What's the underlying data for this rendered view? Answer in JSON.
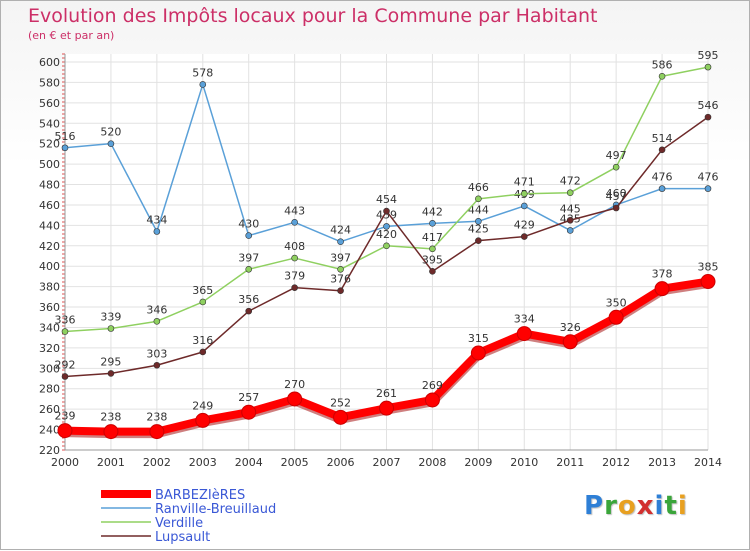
{
  "title": "Evolution des Impôts locaux pour la Commune par Habitant",
  "subtitle": "(en € et par an)",
  "logo": {
    "text": "Proxiti",
    "colors": [
      "#2e7fd6",
      "#3aa53a",
      "#e8a020",
      "#d22f2f",
      "#2e7fd6",
      "#3aa53a",
      "#e8a020"
    ]
  },
  "chart_data": {
    "type": "line",
    "x": [
      "2000",
      "2001",
      "2002",
      "2003",
      "2004",
      "2005",
      "2006",
      "2007",
      "2008",
      "2009",
      "2010",
      "2011",
      "2012",
      "2013",
      "2014"
    ],
    "ylim": [
      220,
      600
    ],
    "yticks": [
      220,
      240,
      260,
      280,
      300,
      320,
      340,
      360,
      380,
      400,
      420,
      440,
      460,
      480,
      500,
      520,
      540,
      560,
      580,
      600
    ],
    "grid": true,
    "legend_position": "bottom-left",
    "series": [
      {
        "name": "BARBEZIèRES",
        "color": "#ff0000",
        "bold": true,
        "values": [
          239,
          238,
          238,
          249,
          257,
          270,
          252,
          261,
          269,
          315,
          334,
          326,
          350,
          378,
          385
        ],
        "labels": [
          "239",
          "238",
          "238",
          "249",
          "257",
          "270",
          "252",
          "261",
          "269",
          "315",
          "334",
          "326",
          "350",
          "378",
          "385"
        ]
      },
      {
        "name": "Ranville-Breuillaud",
        "color": "#5aa0d8",
        "bold": false,
        "values": [
          516,
          520,
          434,
          578,
          430,
          443,
          424,
          439,
          442,
          444,
          459,
          435,
          460,
          476,
          476
        ],
        "labels": [
          "516",
          "520",
          "434",
          "578",
          "430",
          "443",
          "424",
          "439",
          "442",
          "444",
          "459",
          "435",
          "460",
          "476",
          "476"
        ]
      },
      {
        "name": "Verdille",
        "color": "#8fd060",
        "bold": false,
        "values": [
          336,
          339,
          346,
          365,
          397,
          408,
          397,
          420,
          417,
          466,
          471,
          472,
          497,
          586,
          595
        ],
        "labels": [
          "336",
          "339",
          "346",
          "365",
          "397",
          "408",
          "397",
          "420",
          "417",
          "466",
          "471",
          "472",
          "497",
          "586",
          "595"
        ]
      },
      {
        "name": "Lupsault",
        "color": "#6e2a2a",
        "bold": false,
        "values": [
          292,
          295,
          303,
          316,
          356,
          379,
          376,
          454,
          395,
          425,
          429,
          445,
          457,
          514,
          546
        ],
        "labels": [
          "292",
          "295",
          "303",
          "316",
          "356",
          "379",
          "376",
          "454",
          "395",
          "425",
          "429",
          "445",
          "457",
          "514",
          "546"
        ]
      }
    ]
  }
}
